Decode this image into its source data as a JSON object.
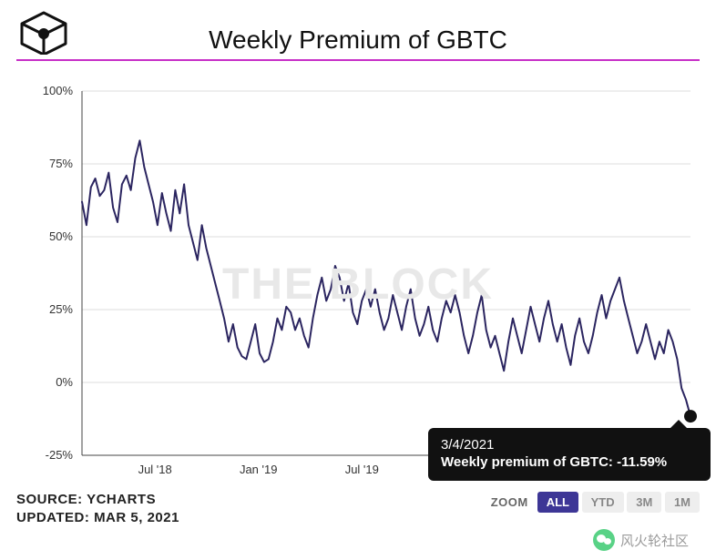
{
  "header": {
    "title": "Weekly Premium of GBTC",
    "accent_color": "#c72fc7",
    "logo_stroke": "#111111"
  },
  "watermark": "THE BLOCK",
  "chart": {
    "type": "line",
    "line_color": "#2b2560",
    "line_width": 2,
    "background_color": "#ffffff",
    "grid_color": "#dddddd",
    "axis_color": "#444444",
    "ylim": [
      -25,
      100
    ],
    "ytick_step": 25,
    "y_ticks": [
      -25,
      0,
      25,
      50,
      75,
      100
    ],
    "y_tick_labels": [
      "-25%",
      "0%",
      "25%",
      "50%",
      "75%",
      "100%"
    ],
    "x_tick_labels": [
      "Jul '18",
      "Jan '19",
      "Jul '19"
    ],
    "x_tick_positions": [
      0.12,
      0.29,
      0.46
    ],
    "label_fontsize": 13,
    "series": [
      62,
      54,
      67,
      70,
      64,
      66,
      72,
      60,
      55,
      68,
      71,
      66,
      77,
      83,
      74,
      68,
      62,
      54,
      65,
      58,
      52,
      66,
      58,
      68,
      54,
      48,
      42,
      54,
      46,
      40,
      34,
      28,
      22,
      14,
      20,
      12,
      9,
      8,
      14,
      20,
      10,
      7,
      8,
      14,
      22,
      18,
      26,
      24,
      18,
      22,
      16,
      12,
      22,
      30,
      36,
      28,
      32,
      40,
      36,
      28,
      34,
      24,
      20,
      28,
      32,
      26,
      32,
      24,
      18,
      22,
      30,
      24,
      18,
      26,
      32,
      22,
      16,
      20,
      26,
      18,
      14,
      22,
      28,
      24,
      30,
      24,
      16,
      10,
      16,
      24,
      30,
      18,
      12,
      16,
      10,
      4,
      14,
      22,
      16,
      10,
      18,
      26,
      20,
      14,
      22,
      28,
      20,
      14,
      20,
      12,
      6,
      16,
      22,
      14,
      10,
      16,
      24,
      30,
      22,
      28,
      32,
      36,
      28,
      22,
      16,
      10,
      14,
      20,
      14,
      8,
      14,
      10,
      18,
      14,
      8,
      -2,
      -6,
      -11.59
    ],
    "highlight": {
      "index": 137,
      "value": -11.59,
      "marker_color": "#111111",
      "marker_radius": 7
    }
  },
  "tooltip": {
    "date": "3/4/2021",
    "label": "Weekly premium of GBTC:",
    "value": "-11.59%",
    "background_color": "#111111",
    "text_color": "#ffffff"
  },
  "footer": {
    "source_label": "SOURCE:",
    "source_value": "YCHARTS",
    "updated_label": "UPDATED:",
    "updated_value": "MAR 5, 2021"
  },
  "zoom": {
    "label": "ZOOM",
    "buttons": [
      {
        "label": "ALL",
        "active": true
      },
      {
        "label": "YTD",
        "active": false
      },
      {
        "label": "3M",
        "active": false
      },
      {
        "label": "1M",
        "active": false
      }
    ]
  },
  "wechat": {
    "text": "风火轮社区"
  }
}
